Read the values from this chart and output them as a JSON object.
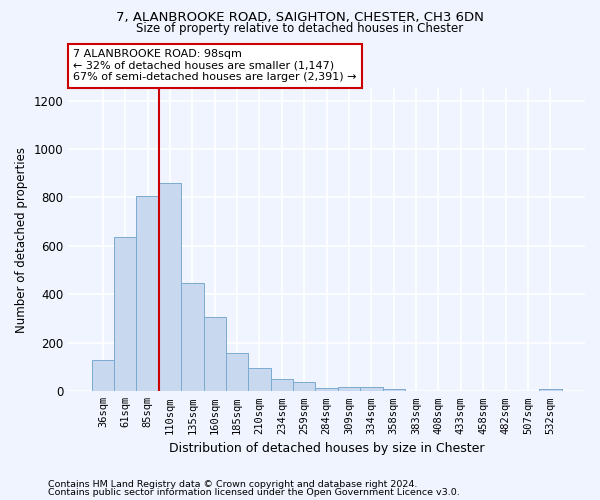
{
  "title1": "7, ALANBROOKE ROAD, SAIGHTON, CHESTER, CH3 6DN",
  "title2": "Size of property relative to detached houses in Chester",
  "xlabel": "Distribution of detached houses by size in Chester",
  "ylabel": "Number of detached properties",
  "categories": [
    "36sqm",
    "61sqm",
    "85sqm",
    "110sqm",
    "135sqm",
    "160sqm",
    "185sqm",
    "210sqm",
    "234sqm",
    "259sqm",
    "284sqm",
    "309sqm",
    "334sqm",
    "358sqm",
    "383sqm",
    "408sqm",
    "433sqm",
    "458sqm",
    "482sqm",
    "507sqm",
    "532sqm"
  ],
  "values": [
    130,
    635,
    808,
    858,
    445,
    305,
    158,
    95,
    50,
    37,
    15,
    18,
    18,
    10,
    0,
    0,
    0,
    0,
    0,
    0,
    10
  ],
  "bar_color": "#c8d8ee",
  "bar_edge_color": "#7aaad0",
  "vline_x": 2.5,
  "vline_color": "#cc0000",
  "annotation_text": "7 ALANBROOKE ROAD: 98sqm\n← 32% of detached houses are smaller (1,147)\n67% of semi-detached houses are larger (2,391) →",
  "annotation_box_color": "#ffffff",
  "annotation_box_edge_color": "#cc0000",
  "ylim": [
    0,
    1250
  ],
  "yticks": [
    0,
    200,
    400,
    600,
    800,
    1000,
    1200
  ],
  "footer1": "Contains HM Land Registry data © Crown copyright and database right 2024.",
  "footer2": "Contains public sector information licensed under the Open Government Licence v3.0.",
  "bg_color": "#f0f4ff",
  "plot_bg_color": "#f0f4ff",
  "grid_color": "#ffffff"
}
